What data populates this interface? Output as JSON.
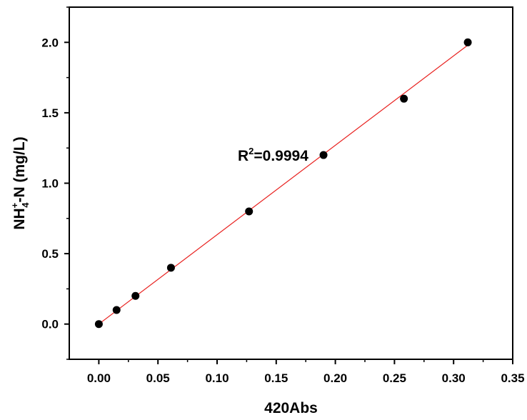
{
  "chart_data": {
    "type": "scatter",
    "title": "",
    "xlabel": "420Abs",
    "ylabel": {
      "pre": "NH",
      "sup": "+",
      "sub": "4",
      "post": "-N (mg/L)"
    },
    "xlim": [
      -0.025,
      0.35
    ],
    "ylim": [
      -0.25,
      2.25
    ],
    "xticks": [
      0.0,
      0.05,
      0.1,
      0.15,
      0.2,
      0.25,
      0.3,
      0.35
    ],
    "xtick_labels": [
      "0.00",
      "0.05",
      "0.10",
      "0.15",
      "0.20",
      "0.25",
      "0.30",
      "0.35"
    ],
    "yticks": [
      0.0,
      0.5,
      1.0,
      1.5,
      2.0
    ],
    "ytick_labels": [
      "0.0",
      "0.5",
      "1.0",
      "1.5",
      "2.0"
    ],
    "grid": false,
    "legend": "none",
    "series": [
      {
        "points": [
          {
            "x": 0.0,
            "y": 0.0
          },
          {
            "x": 0.015,
            "y": 0.1
          },
          {
            "x": 0.031,
            "y": 0.2
          },
          {
            "x": 0.061,
            "y": 0.4
          },
          {
            "x": 0.127,
            "y": 0.8
          },
          {
            "x": 0.19,
            "y": 1.2
          },
          {
            "x": 0.258,
            "y": 1.6
          },
          {
            "x": 0.312,
            "y": 2.0
          }
        ],
        "color": "#000000"
      }
    ],
    "fit_line": {
      "color": "#e8201e",
      "x": [
        0.0,
        0.312
      ],
      "y": [
        0.0,
        1.98
      ]
    },
    "annotation": {
      "prefix": "R",
      "sup": "2",
      "suffix": "=0.9994",
      "x": 0.132,
      "y": 1.2
    }
  }
}
